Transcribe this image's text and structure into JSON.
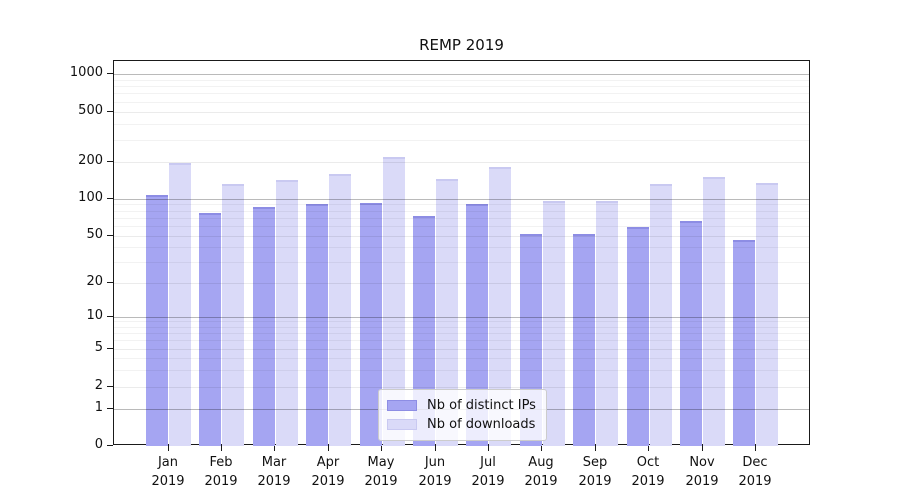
{
  "chart_data": {
    "type": "bar",
    "title": "REMP 2019",
    "xlabel": "",
    "ylabel": "",
    "x_tick_second_line": "2019",
    "categories": [
      "Jan",
      "Feb",
      "Mar",
      "Apr",
      "May",
      "Jun",
      "Jul",
      "Aug",
      "Sep",
      "Oct",
      "Nov",
      "Dec"
    ],
    "series": [
      {
        "name": "Nb of distinct IPs",
        "color": "#a5a5f2",
        "edge_color": "#8d8de4",
        "values": [
          106,
          77,
          85,
          90,
          92,
          73,
          91,
          52,
          52,
          59,
          66,
          46
        ]
      },
      {
        "name": "Nb of downloads",
        "color": "#dadaf8",
        "edge_color": "#c9c9f1",
        "values": [
          197,
          132,
          143,
          158,
          220,
          146,
          181,
          95,
          95,
          132,
          151,
          134
        ]
      }
    ],
    "yticks": [
      0,
      1,
      2,
      5,
      10,
      20,
      50,
      100,
      200,
      500,
      1000
    ],
    "ylim": [
      0,
      1200
    ],
    "yscale": "symlog",
    "grid": true,
    "legend_position": "lower center"
  }
}
